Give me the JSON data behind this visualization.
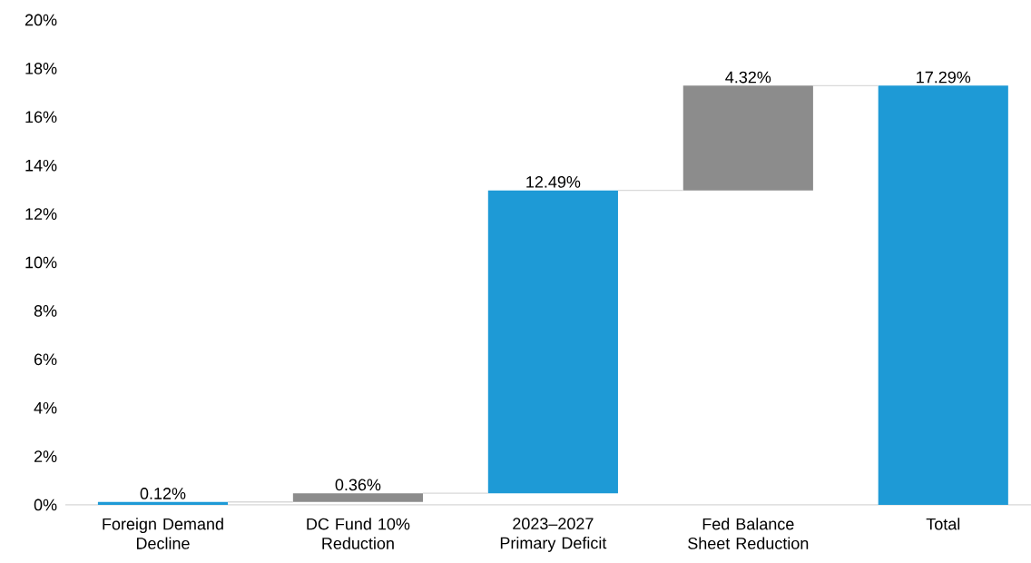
{
  "chart_data": {
    "type": "bar",
    "categories": [
      "Foreign Demand Decline",
      "DC Fund 10% Reduction",
      "2023–2027 Primary Deficit",
      "Fed Balance Sheet Reduction",
      "Total"
    ],
    "values": [
      0.12,
      0.36,
      12.49,
      4.32,
      17.29
    ],
    "base": [
      0,
      0.12,
      0.48,
      12.97,
      0
    ],
    "colors": [
      "#1e9ad6",
      "#8c8c8c",
      "#1e9ad6",
      "#8c8c8c",
      "#1e9ad6"
    ],
    "value_labels": [
      "0.12%",
      "0.36%",
      "12.49%",
      "4.32%",
      "17.29%"
    ],
    "ylim": [
      0,
      20
    ],
    "yticks": [
      {
        "value": 0,
        "label": "0%"
      },
      {
        "value": 2,
        "label": "2%"
      },
      {
        "value": 4,
        "label": "4%"
      },
      {
        "value": 6,
        "label": "6%"
      },
      {
        "value": 8,
        "label": "8%"
      },
      {
        "value": 10,
        "label": "10%"
      },
      {
        "value": 12,
        "label": "12%"
      },
      {
        "value": 14,
        "label": "14%"
      },
      {
        "value": 16,
        "label": "16%"
      },
      {
        "value": 18,
        "label": "18%"
      },
      {
        "value": 20,
        "label": "20%"
      }
    ]
  }
}
